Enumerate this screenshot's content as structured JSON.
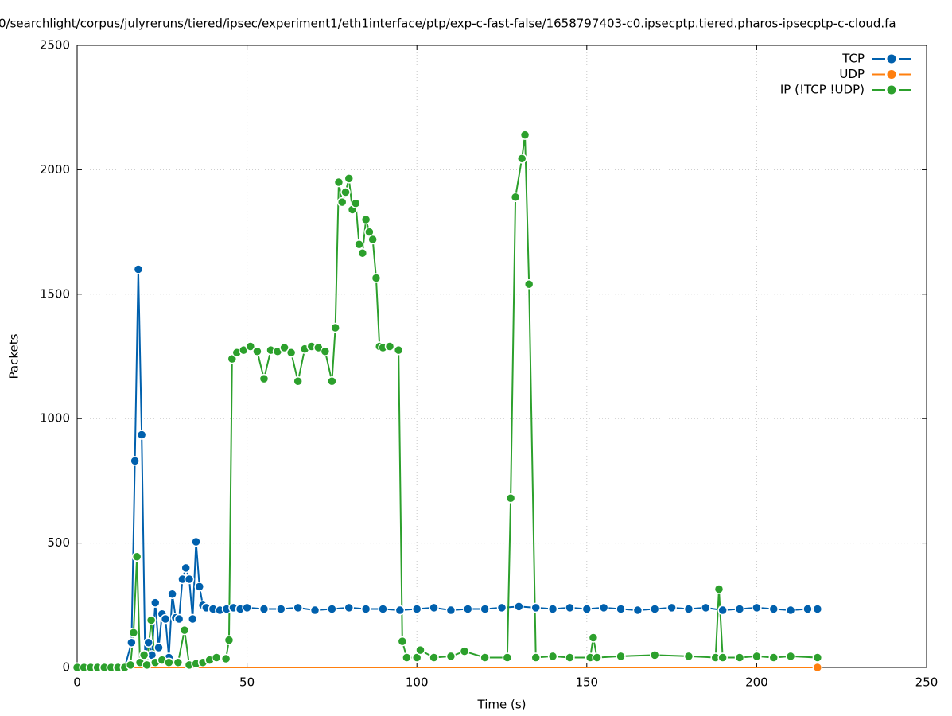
{
  "chart_data": {
    "type": "line",
    "title": "0/searchlight/corpus/julyreruns/tiered/ipsec/experiment1/eth1interface/ptp/exp-c-fast-false/1658797403-c0.ipsecptp.tiered.pharos-ipsecptp-c-cloud.fa",
    "x_label": "Time (s)",
    "y_label": "Packets",
    "xlim": [
      0,
      250
    ],
    "xticks": [
      0,
      50,
      100,
      150,
      200,
      250
    ],
    "ylim": [
      0,
      2500
    ],
    "yticks": [
      0,
      500,
      1000,
      1500,
      2000,
      2500
    ],
    "grid": true,
    "legend": "top-right",
    "series": [
      {
        "name": "TCP",
        "color": "#0060ad",
        "x": [
          0,
          2,
          4,
          6,
          8,
          10,
          12,
          14,
          16,
          17,
          18,
          19,
          20,
          21,
          22,
          23,
          24,
          25,
          26,
          27,
          28,
          29,
          30,
          31,
          32,
          33,
          34,
          35,
          36,
          37,
          38,
          40,
          42,
          44,
          46,
          48,
          50,
          55,
          60,
          65,
          70,
          75,
          80,
          85,
          90,
          95,
          100,
          105,
          110,
          115,
          120,
          125,
          130,
          135,
          140,
          145,
          150,
          155,
          160,
          165,
          170,
          175,
          180,
          185,
          190,
          195,
          200,
          205,
          210,
          215,
          217.9
        ],
        "values": [
          0,
          0,
          0,
          0,
          0,
          0,
          0,
          0,
          100,
          830,
          1600,
          935,
          50,
          100,
          50,
          260,
          80,
          215,
          195,
          40,
          295,
          200,
          195,
          355,
          400,
          355,
          195,
          505,
          325,
          250,
          240,
          235,
          230,
          235,
          240,
          235,
          240,
          235,
          235,
          240,
          230,
          235,
          240,
          235,
          235,
          230,
          235,
          240,
          230,
          235,
          235,
          240,
          245,
          240,
          235,
          240,
          235,
          240,
          235,
          230,
          235,
          240,
          235,
          240,
          230,
          235,
          240,
          235,
          230,
          235,
          235
        ]
      },
      {
        "name": "UDP",
        "color": "#ff7f0e",
        "x": [
          0,
          217.9
        ],
        "values": [
          0,
          0
        ]
      },
      {
        "name": "IP (!TCP  !UDP)",
        "color": "#2ca02c",
        "x": [
          0,
          2,
          4,
          6,
          8,
          10,
          12,
          14,
          15.7,
          16.6,
          17.6,
          18.5,
          19.7,
          20.5,
          21.8,
          23,
          25,
          27,
          29.7,
          31.6,
          33,
          35,
          37,
          39,
          41,
          43.8,
          44.7,
          45.6,
          47,
          49,
          51,
          53,
          55,
          57,
          59,
          61,
          63,
          65,
          67,
          69,
          71,
          73,
          75,
          76,
          77,
          78,
          79,
          80,
          81,
          82,
          83,
          84,
          85,
          86,
          87,
          88,
          89,
          90,
          92,
          94.6,
          95.7,
          97,
          100,
          101,
          105,
          110,
          114,
          120,
          126.6,
          127.6,
          129,
          130.9,
          131.8,
          133,
          135,
          140,
          145,
          151,
          151.9,
          153,
          160,
          170,
          180,
          187.9,
          188.9,
          190,
          195,
          200,
          205,
          210,
          217.9
        ],
        "values": [
          0,
          0,
          0,
          0,
          0,
          0,
          0,
          0,
          10,
          140,
          445,
          20,
          50,
          10,
          190,
          20,
          30,
          20,
          20,
          150,
          10,
          15,
          20,
          30,
          40,
          35,
          110,
          1240,
          1265,
          1275,
          1290,
          1270,
          1160,
          1275,
          1270,
          1285,
          1265,
          1150,
          1280,
          1290,
          1285,
          1270,
          1150,
          1365,
          1950,
          1870,
          1910,
          1965,
          1840,
          1865,
          1700,
          1665,
          1800,
          1750,
          1720,
          1565,
          1290,
          1285,
          1290,
          1275,
          105,
          40,
          40,
          70,
          40,
          45,
          65,
          40,
          40,
          680,
          1890,
          2045,
          2140,
          1540,
          40,
          45,
          40,
          40,
          120,
          40,
          45,
          50,
          45,
          40,
          315,
          40,
          40,
          45,
          40,
          45,
          40
        ]
      }
    ]
  }
}
